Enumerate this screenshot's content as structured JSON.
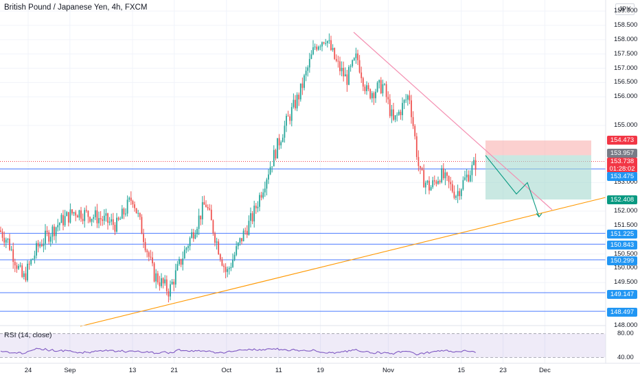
{
  "chart": {
    "title": "British Pound / Japanese Yen, 4h, FXCM",
    "currency_button": "JPY",
    "rsi_label": "RSI (14, close)"
  },
  "axis": {
    "y_ticks": [
      "159.000",
      "158.500",
      "158.000",
      "157.500",
      "157.000",
      "156.500",
      "156.000",
      "155.000",
      "153.000",
      "152.000",
      "151.500",
      "150.500",
      "150.000",
      "149.500",
      "148.000"
    ],
    "x_ticks": [
      "24",
      "Sep",
      "13",
      "21",
      "Oct",
      "11",
      "19",
      "Nov",
      "15",
      "23",
      "Dec"
    ],
    "rsi_ticks": [
      "80.00",
      "40.00"
    ]
  },
  "tags": {
    "stop_loss": "154.473",
    "entry": "153.957",
    "last_price": "153.738",
    "countdown": "01:28:02",
    "level_a": "153.475",
    "target": "152.408",
    "level_b": "151.225",
    "level_c": "150.843",
    "level_d": "150.299",
    "level_e": "149.147",
    "level_f": "148.497"
  },
  "colors": {
    "up": "#26a69a",
    "down": "#ef5350",
    "level_line": "#2962ff",
    "tag_blue": "#2196f3",
    "downtrend": "#f48fb1",
    "uptrend": "#ff9800",
    "rsi": "#7e57c2",
    "projection": "#089981",
    "current": "#f23645"
  },
  "chart_data": {
    "type": "candlestick",
    "symbol": "GBPJPY",
    "timeframe": "4h",
    "price_path": [
      {
        "date": "Aug 20",
        "price": 151.0
      },
      {
        "date": "Aug 23",
        "price": 149.6
      },
      {
        "date": "Aug 26",
        "price": 150.8
      },
      {
        "date": "Aug 30",
        "price": 151.6
      },
      {
        "date": "Sep 2",
        "price": 152.0
      },
      {
        "date": "Sep 6",
        "price": 151.8
      },
      {
        "date": "Sep 10",
        "price": 151.5
      },
      {
        "date": "Sep 13",
        "price": 152.5
      },
      {
        "date": "Sep 15",
        "price": 151.2
      },
      {
        "date": "Sep 17",
        "price": 149.8
      },
      {
        "date": "Sep 20",
        "price": 149.2
      },
      {
        "date": "Sep 23",
        "price": 150.6
      },
      {
        "date": "Sep 27",
        "price": 152.3
      },
      {
        "date": "Sep 29",
        "price": 151.0
      },
      {
        "date": "Oct 1",
        "price": 149.8
      },
      {
        "date": "Oct 4",
        "price": 151.1
      },
      {
        "date": "Oct 6",
        "price": 151.8
      },
      {
        "date": "Oct 9",
        "price": 153.4
      },
      {
        "date": "Oct 12",
        "price": 154.9
      },
      {
        "date": "Oct 15",
        "price": 156.1
      },
      {
        "date": "Oct 18",
        "price": 157.8
      },
      {
        "date": "Oct 20",
        "price": 158.1
      },
      {
        "date": "Oct 22",
        "price": 157.2
      },
      {
        "date": "Oct 24",
        "price": 156.6
      },
      {
        "date": "Oct 26",
        "price": 157.4
      },
      {
        "date": "Oct 28",
        "price": 156.1
      },
      {
        "date": "Oct 31",
        "price": 156.4
      },
      {
        "date": "Nov 2",
        "price": 155.1
      },
      {
        "date": "Nov 5",
        "price": 156.1
      },
      {
        "date": "Nov 7",
        "price": 153.3
      },
      {
        "date": "Nov 9",
        "price": 152.8
      },
      {
        "date": "Nov 11",
        "price": 153.3
      },
      {
        "date": "Nov 14",
        "price": 152.6
      },
      {
        "date": "Nov 16",
        "price": 153.2
      },
      {
        "date": "Nov 18",
        "price": 153.74
      }
    ],
    "levels": [
      151.225,
      150.843,
      150.299,
      149.147,
      148.497,
      153.475
    ],
    "position": {
      "entry": 153.957,
      "stop": 154.473,
      "target": 152.408
    },
    "projection": [
      153.95,
      152.6,
      153.0,
      151.8
    ],
    "rsi": {
      "levels": [
        80,
        40
      ]
    }
  }
}
